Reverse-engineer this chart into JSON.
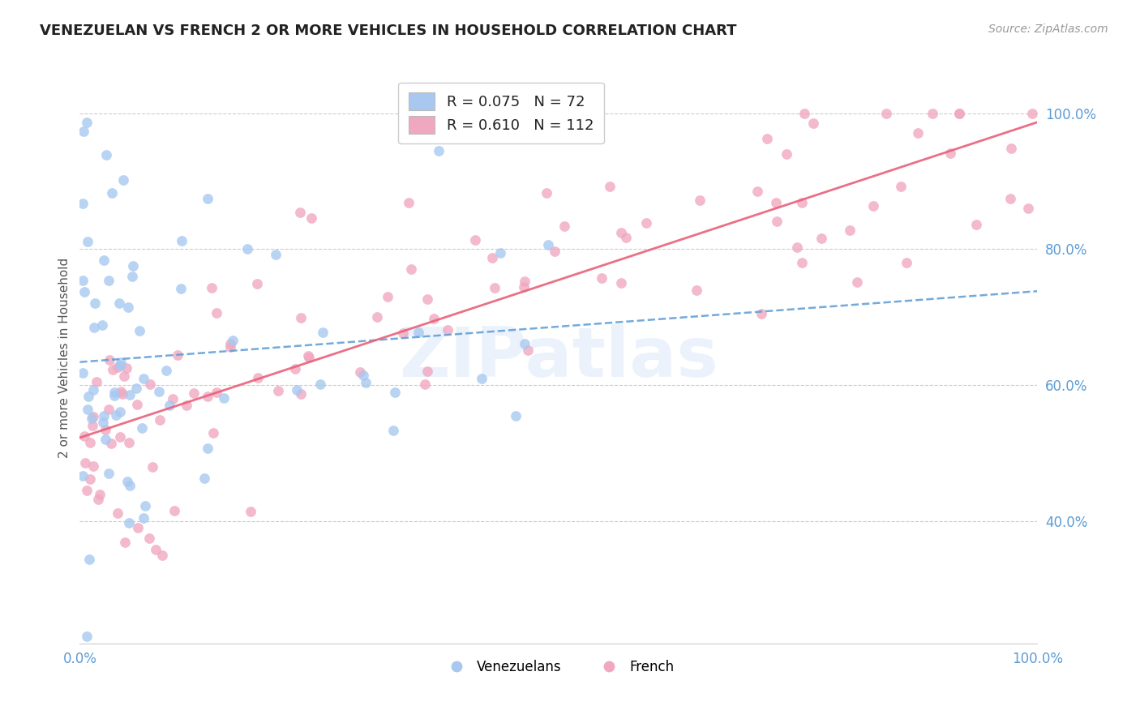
{
  "title": "VENEZUELAN VS FRENCH 2 OR MORE VEHICLES IN HOUSEHOLD CORRELATION CHART",
  "source": "Source: ZipAtlas.com",
  "ylabel": "2 or more Vehicles in Household",
  "legend_labels": [
    "Venezuelans",
    "French"
  ],
  "legend_r": [
    0.075,
    0.61
  ],
  "legend_n": [
    72,
    112
  ],
  "blue_color": "#A8C8F0",
  "pink_color": "#F0A8C0",
  "blue_line_color": "#5B9BD5",
  "pink_line_color": "#E8607A",
  "xlim": [
    0,
    100
  ],
  "ylim": [
    22,
    106
  ],
  "xtick_labels": [
    "0.0%",
    "100.0%"
  ],
  "xtick_values": [
    0,
    100
  ],
  "ytick_labels": [
    "40.0%",
    "60.0%",
    "80.0%",
    "100.0%"
  ],
  "ytick_values": [
    40,
    60,
    80,
    100
  ],
  "background_color": "#FFFFFF",
  "grid_color": "#CCCCCC",
  "tick_color": "#5B9BD5",
  "title_color": "#222222",
  "source_color": "#999999",
  "ylabel_color": "#555555",
  "watermark_text": "ZIPatlas",
  "watermark_color": "#A8C8F0",
  "watermark_alpha": 0.22,
  "ven_seed": 12345,
  "fr_seed": 67890
}
